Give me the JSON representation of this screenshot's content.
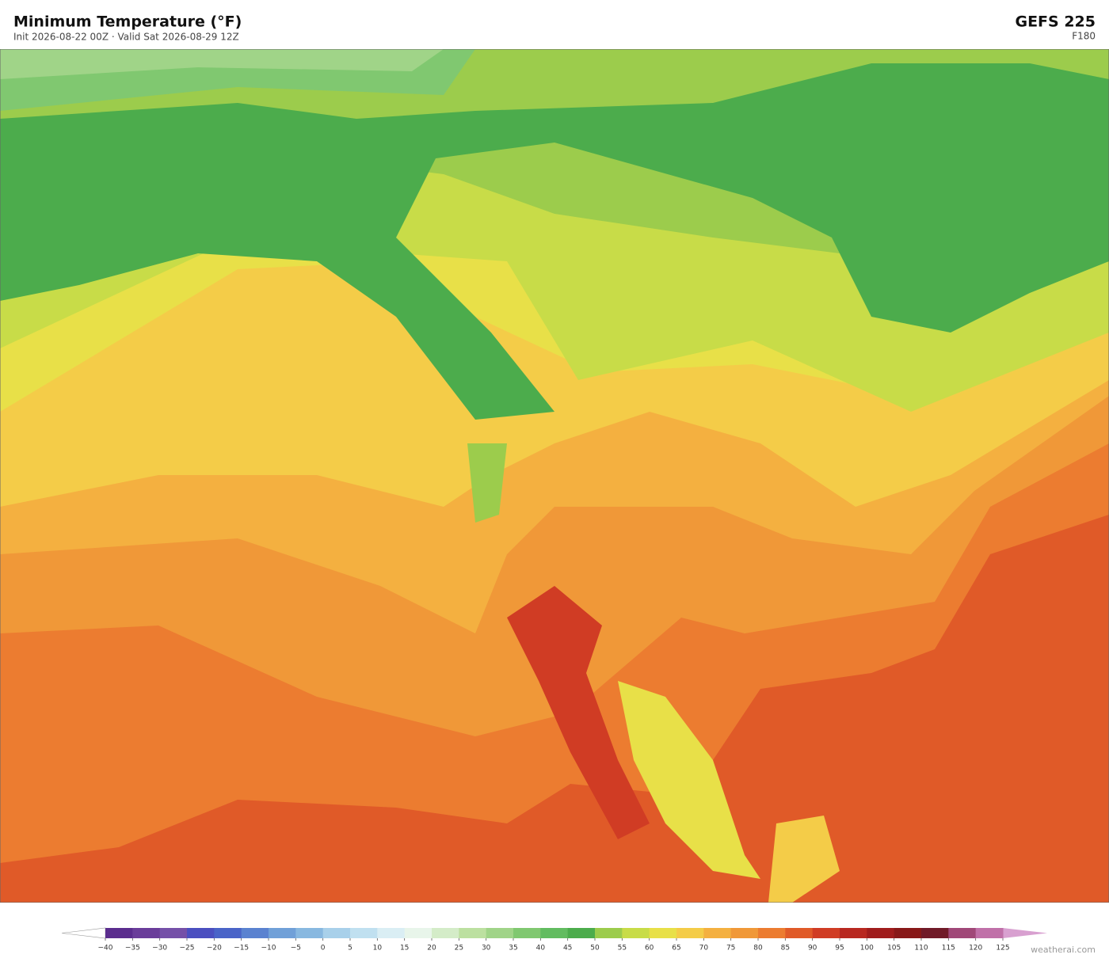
{
  "header": {
    "title": "Minimum Temperature  (°F)",
    "subtitle": "Init 2026-08-22 00Z  ·  Valid Sat 2026-08-29 12Z",
    "model": "GEFS  225",
    "forecast_hour": "F180"
  },
  "colorbar": {
    "ticks": [
      {
        "value": -40,
        "label": "−40"
      },
      {
        "value": -35,
        "label": "−35"
      },
      {
        "value": -30,
        "label": "−30"
      },
      {
        "value": -25,
        "label": "−25"
      },
      {
        "value": -20,
        "label": "−20"
      },
      {
        "value": -15,
        "label": "−15"
      },
      {
        "value": -10,
        "label": "−10"
      },
      {
        "value": -5,
        "label": "−5"
      },
      0,
      5,
      10,
      15,
      20,
      25,
      30,
      35,
      40,
      45,
      50,
      55,
      60,
      65,
      70,
      75,
      80,
      85,
      90,
      95,
      100,
      105,
      110,
      115,
      120,
      125
    ],
    "colors": [
      "#5b2d8e",
      "#6a3d9a",
      "#7550a8",
      "#4b4fc0",
      "#4a64c8",
      "#5a82d0",
      "#70a0d8",
      "#88b8e0",
      "#a8d0ea",
      "#c0e0f0",
      "#daeef4",
      "#e8f5ea",
      "#d4ecc8",
      "#bce0a0",
      "#a0d488",
      "#80c870",
      "#62bc60",
      "#4cac4c",
      "#9ccc4c",
      "#c8dc48",
      "#e8e048",
      "#f4cc48",
      "#f4b040",
      "#f09838",
      "#ec7c30",
      "#e05a28",
      "#d03c24",
      "#b82820",
      "#a01c1c",
      "#881818",
      "#701a28",
      "#a04878",
      "#c070a8"
    ],
    "under_color": "#ffffff",
    "over_color": "#d8a0d0"
  },
  "footer": {
    "credit": "weatherai.com"
  }
}
